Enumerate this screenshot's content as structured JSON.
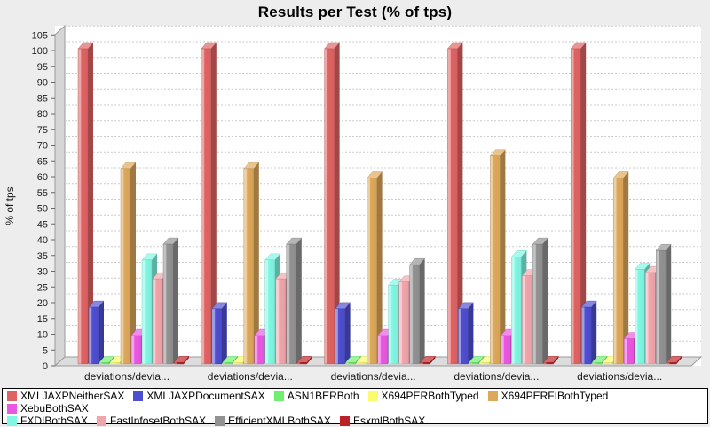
{
  "title": "Results per Test (% of tps)",
  "chart_data": {
    "type": "bar",
    "title": "Results per Test (% of tps)",
    "xlabel": "",
    "ylabel": "% of tps",
    "ylim": [
      0,
      105
    ],
    "ytick_step": 5,
    "grid": "horizontal-dashed",
    "style": "3d-bars",
    "legend_position": "bottom",
    "legend_rows": [
      6,
      4
    ],
    "categories": [
      "deviations/devia...",
      "deviations/devia...",
      "deviations/devia...",
      "deviations/devia...",
      "deviations/devia..."
    ],
    "series": [
      {
        "name": "XMLJAXPNeitherSAX",
        "color": "#E06363",
        "values": [
          100,
          100,
          100,
          100,
          100
        ]
      },
      {
        "name": "XMLJAXPDocumentSAX",
        "color": "#4E4ED0",
        "values": [
          18,
          17.5,
          17.5,
          17.5,
          18
        ]
      },
      {
        "name": "ASN1BERBoth",
        "color": "#6FEF6F",
        "values": [
          0.5,
          0.5,
          0.5,
          0.5,
          0.5
        ]
      },
      {
        "name": "X694PERBothTyped",
        "color": "#FBFB6E",
        "values": [
          0.5,
          0.5,
          0.5,
          0.5,
          0.5
        ]
      },
      {
        "name": "X694PERFIBothTyped",
        "color": "#DDA85A",
        "values": [
          62,
          62,
          59,
          66,
          59
        ]
      },
      {
        "name": "XebuBothSAX",
        "color": "#EA57E2",
        "values": [
          9,
          9,
          9,
          9,
          8
        ]
      },
      {
        "name": "FXDIBothSAX",
        "color": "#7FF7E3",
        "values": [
          33,
          33,
          25,
          34,
          30
        ]
      },
      {
        "name": "FastInfosetBothSAX",
        "color": "#F0A5AB",
        "values": [
          27,
          27,
          26,
          28,
          29
        ]
      },
      {
        "name": "EfficientXMLBothSAX",
        "color": "#929292",
        "values": [
          38,
          38,
          31.5,
          38,
          36
        ]
      },
      {
        "name": "EsxmlBothSAX",
        "color": "#BB2228",
        "values": [
          0.5,
          0.5,
          0.5,
          0.5,
          0.5
        ]
      }
    ]
  }
}
